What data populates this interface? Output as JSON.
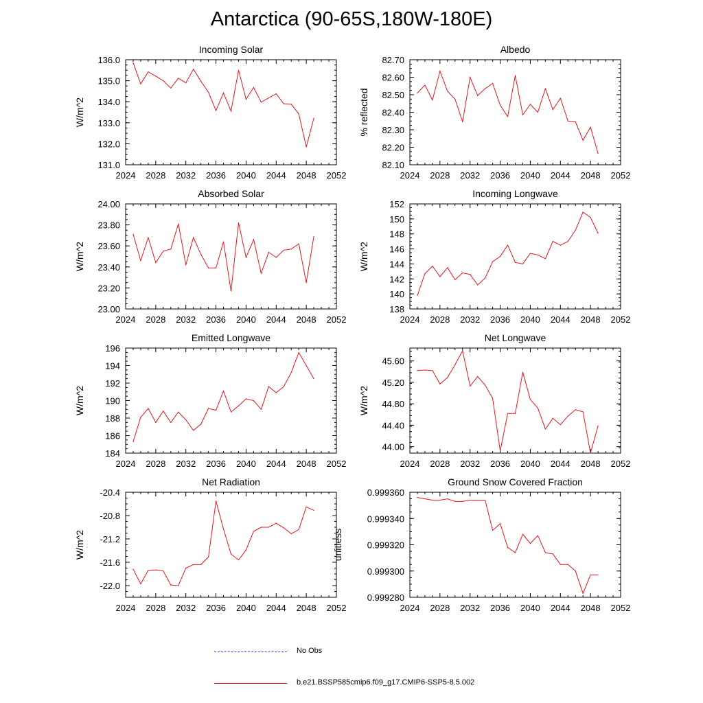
{
  "title": "Antarctica (90-65S,180W-180E)",
  "legend": [
    {
      "label": "No Obs",
      "color": "#3b3bd6",
      "style": "dashed"
    },
    {
      "label": "b.e21.BSSP585cmip6.f09_g17.CMIP6-SSP5-8.5.002",
      "color": "#e8141b",
      "style": "solid"
    }
  ],
  "series_color": "#e8141b",
  "chart_data": [
    {
      "type": "line",
      "title": "Incoming Solar",
      "ylabel": "W/m^2",
      "xlim": [
        2024,
        2052
      ],
      "ylim": [
        131.0,
        136.0
      ],
      "xticks": [
        2024,
        2028,
        2032,
        2036,
        2040,
        2044,
        2048,
        2052
      ],
      "yticks": [
        "131.0",
        "132.0",
        "133.0",
        "134.0",
        "135.0",
        "136.0"
      ],
      "x": [
        2025,
        2026,
        2027,
        2028,
        2029,
        2030,
        2031,
        2032,
        2033,
        2034,
        2035,
        2036,
        2037,
        2038,
        2039,
        2040,
        2041,
        2042,
        2043,
        2044,
        2045,
        2046,
        2047,
        2048,
        2049
      ],
      "values": [
        135.85,
        134.85,
        135.42,
        135.22,
        135.0,
        134.65,
        135.12,
        134.9,
        135.55,
        134.98,
        134.45,
        133.58,
        134.42,
        133.55,
        135.5,
        134.12,
        134.68,
        133.98,
        134.18,
        134.38,
        133.9,
        133.88,
        133.42,
        131.85,
        133.22
      ]
    },
    {
      "type": "line",
      "title": "Albedo",
      "ylabel": "% reflected",
      "xlim": [
        2024,
        2052
      ],
      "ylim": [
        82.1,
        82.7
      ],
      "xticks": [
        2024,
        2028,
        2032,
        2036,
        2040,
        2044,
        2048,
        2052
      ],
      "yticks": [
        "82.10",
        "82.20",
        "82.30",
        "82.40",
        "82.50",
        "82.60",
        "82.70"
      ],
      "x": [
        2025,
        2026,
        2027,
        2028,
        2029,
        2030,
        2031,
        2032,
        2033,
        2034,
        2035,
        2036,
        2037,
        2038,
        2039,
        2040,
        2041,
        2042,
        2043,
        2044,
        2045,
        2046,
        2047,
        2048,
        2049
      ],
      "values": [
        82.51,
        82.555,
        82.47,
        82.635,
        82.52,
        82.475,
        82.345,
        82.6,
        82.495,
        82.535,
        82.565,
        82.44,
        82.375,
        82.61,
        82.385,
        82.445,
        82.4,
        82.535,
        82.415,
        82.48,
        82.35,
        82.345,
        82.24,
        82.315,
        82.165
      ]
    },
    {
      "type": "line",
      "title": "Absorbed Solar",
      "ylabel": "W/m^2",
      "xlim": [
        2024,
        2052
      ],
      "ylim": [
        23.0,
        24.0
      ],
      "xticks": [
        2024,
        2028,
        2032,
        2036,
        2040,
        2044,
        2048,
        2052
      ],
      "yticks": [
        "23.00",
        "23.20",
        "23.40",
        "23.60",
        "23.80",
        "24.00"
      ],
      "x": [
        2025,
        2026,
        2027,
        2028,
        2029,
        2030,
        2031,
        2032,
        2033,
        2034,
        2035,
        2036,
        2037,
        2038,
        2039,
        2040,
        2041,
        2042,
        2043,
        2044,
        2045,
        2046,
        2047,
        2048,
        2049
      ],
      "values": [
        23.71,
        23.46,
        23.68,
        23.44,
        23.55,
        23.57,
        23.81,
        23.42,
        23.68,
        23.52,
        23.39,
        23.39,
        23.64,
        23.17,
        23.82,
        23.49,
        23.66,
        23.34,
        23.54,
        23.49,
        23.56,
        23.57,
        23.62,
        23.25,
        23.69
      ]
    },
    {
      "type": "line",
      "title": "Incoming Longwave",
      "ylabel": "W/m^2",
      "xlim": [
        2024,
        2052
      ],
      "ylim": [
        138,
        152
      ],
      "xticks": [
        2024,
        2028,
        2032,
        2036,
        2040,
        2044,
        2048,
        2052
      ],
      "yticks": [
        "138",
        "140",
        "142",
        "144",
        "146",
        "148",
        "150",
        "152"
      ],
      "x": [
        2025,
        2026,
        2027,
        2028,
        2029,
        2030,
        2031,
        2032,
        2033,
        2034,
        2035,
        2036,
        2037,
        2038,
        2039,
        2040,
        2041,
        2042,
        2043,
        2044,
        2045,
        2046,
        2047,
        2048,
        2049
      ],
      "values": [
        139.8,
        142.7,
        143.7,
        142.3,
        143.5,
        141.9,
        142.8,
        142.6,
        141.2,
        142.1,
        144.3,
        145.0,
        146.5,
        144.2,
        144.0,
        145.4,
        145.2,
        144.7,
        147.0,
        146.5,
        147.0,
        148.5,
        150.9,
        150.2,
        148.1
      ]
    },
    {
      "type": "line",
      "title": "Emitted Longwave",
      "ylabel": "W/m^2",
      "xlim": [
        2024,
        2052
      ],
      "ylim": [
        184,
        196
      ],
      "xticks": [
        2024,
        2028,
        2032,
        2036,
        2040,
        2044,
        2048,
        2052
      ],
      "yticks": [
        "184",
        "186",
        "188",
        "190",
        "192",
        "194",
        "196"
      ],
      "x": [
        2025,
        2026,
        2027,
        2028,
        2029,
        2030,
        2031,
        2032,
        2033,
        2034,
        2035,
        2036,
        2037,
        2038,
        2039,
        2040,
        2041,
        2042,
        2043,
        2044,
        2045,
        2046,
        2047,
        2048,
        2049
      ],
      "values": [
        185.3,
        188.1,
        189.1,
        187.5,
        188.8,
        187.5,
        188.7,
        187.8,
        186.6,
        187.3,
        189.1,
        188.9,
        191.1,
        188.7,
        189.4,
        190.2,
        190.0,
        189.0,
        191.6,
        190.9,
        191.6,
        193.2,
        195.5,
        194.0,
        192.5
      ]
    },
    {
      "type": "line",
      "title": "Net Longwave",
      "ylabel": "W/m^2",
      "xlim": [
        2024,
        2052
      ],
      "ylim": [
        43.88,
        45.84
      ],
      "xticks": [
        2024,
        2028,
        2032,
        2036,
        2040,
        2044,
        2048,
        2052
      ],
      "yticks": [
        "44.00",
        "44.40",
        "44.80",
        "45.20",
        "45.60"
      ],
      "ytick_values": [
        44.0,
        44.4,
        44.8,
        45.2,
        45.6
      ],
      "x": [
        2025,
        2026,
        2027,
        2028,
        2029,
        2030,
        2031,
        2032,
        2033,
        2034,
        2035,
        2036,
        2037,
        2038,
        2039,
        2040,
        2041,
        2042,
        2043,
        2044,
        2045,
        2046,
        2047,
        2048,
        2049
      ],
      "values": [
        45.42,
        45.43,
        45.42,
        45.17,
        45.29,
        45.53,
        45.79,
        45.13,
        45.31,
        45.15,
        44.9,
        43.92,
        44.62,
        44.62,
        45.39,
        44.88,
        44.72,
        44.33,
        44.53,
        44.41,
        44.57,
        44.69,
        44.65,
        43.88,
        44.39
      ]
    },
    {
      "type": "line",
      "title": "Net Radiation",
      "ylabel": "W/m^2",
      "xlim": [
        2024,
        2052
      ],
      "ylim": [
        -22.2,
        -20.4
      ],
      "xticks": [
        2024,
        2028,
        2032,
        2036,
        2040,
        2044,
        2048,
        2052
      ],
      "yticks": [
        "-22.0",
        "-21.6",
        "-21.2",
        "-20.8",
        "-20.4"
      ],
      "ytick_values": [
        -22.0,
        -21.6,
        -21.2,
        -20.8,
        -20.4
      ],
      "x": [
        2025,
        2026,
        2027,
        2028,
        2029,
        2030,
        2031,
        2032,
        2033,
        2034,
        2035,
        2036,
        2037,
        2038,
        2039,
        2040,
        2041,
        2042,
        2043,
        2044,
        2045,
        2046,
        2047,
        2048,
        2049
      ],
      "values": [
        -21.72,
        -21.97,
        -21.74,
        -21.73,
        -21.75,
        -21.99,
        -22.0,
        -21.7,
        -21.64,
        -21.64,
        -21.51,
        -20.55,
        -21.03,
        -21.46,
        -21.56,
        -21.39,
        -21.07,
        -21.0,
        -21.0,
        -20.93,
        -21.01,
        -21.11,
        -21.04,
        -20.65,
        -20.71
      ]
    },
    {
      "type": "line",
      "title": "Ground Snow Covered Fraction",
      "ylabel": "unitless",
      "xlim": [
        2024,
        2052
      ],
      "ylim": [
        0.99928,
        0.99936
      ],
      "xticks": [
        2024,
        2028,
        2032,
        2036,
        2040,
        2044,
        2048,
        2052
      ],
      "yticks": [
        "0.999280",
        "0.999300",
        "0.999320",
        "0.999340",
        "0.999360"
      ],
      "x": [
        2025,
        2026,
        2027,
        2028,
        2029,
        2030,
        2031,
        2032,
        2033,
        2034,
        2035,
        2036,
        2037,
        2038,
        2039,
        2040,
        2041,
        2042,
        2043,
        2044,
        2045,
        2046,
        2047,
        2048,
        2049
      ],
      "values": [
        0.999356,
        0.999355,
        0.999354,
        0.999354,
        0.999355,
        0.999353,
        0.999353,
        0.999354,
        0.999354,
        0.999354,
        0.999331,
        0.999336,
        0.999318,
        0.999314,
        0.999328,
        0.999321,
        0.999327,
        0.999314,
        0.999313,
        0.999305,
        0.999305,
        0.9993,
        0.999283,
        0.999297,
        0.999297
      ]
    }
  ]
}
